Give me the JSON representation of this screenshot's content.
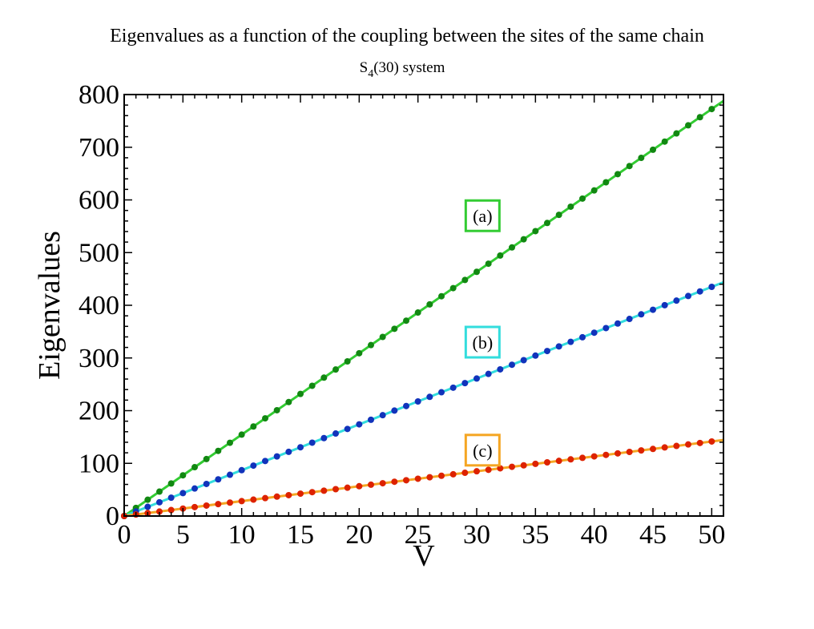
{
  "chart_data": {
    "type": "line",
    "title": "Eigenvalues as a function of the coupling between the sites of the same chain",
    "subtitle": {
      "pre": "S",
      "sub": "4",
      "post": "(30) system"
    },
    "xlabel": "V",
    "ylabel": "Eigenvalues",
    "xlim": [
      0,
      51
    ],
    "ylim": [
      0,
      800
    ],
    "x_ticks": [
      0,
      5,
      10,
      15,
      20,
      25,
      30,
      35,
      40,
      45,
      50
    ],
    "x_tick_labels": [
      "0",
      "5",
      "10",
      "15",
      "20",
      "25",
      "30",
      "35",
      "40",
      "45",
      "50"
    ],
    "y_ticks": [
      0,
      100,
      200,
      300,
      400,
      500,
      600,
      700,
      800
    ],
    "y_tick_labels": [
      "0",
      "100",
      "200",
      "300",
      "400",
      "500",
      "600",
      "700",
      "800"
    ],
    "grid": false,
    "markers_x_start": 0,
    "markers_x_end": 50,
    "markers_x_step": 1,
    "series": [
      {
        "slope": 15.45,
        "intercept": 0,
        "line_color": "#33cc33",
        "marker_color": "#118811",
        "label": "(a)",
        "label_box_color": "#33cc33",
        "label_at": [
          30.5,
          570
        ]
      },
      {
        "slope": 8.7,
        "intercept": 0,
        "line_color": "#33dddd",
        "marker_color": "#1133bb",
        "label": "(b)",
        "label_box_color": "#33dddd",
        "label_at": [
          30.5,
          330
        ]
      },
      {
        "slope": 2.83,
        "intercept": 0,
        "line_color": "#f5a623",
        "marker_color": "#dd2200",
        "label": "(c)",
        "label_box_color": "#f5a623",
        "label_at": [
          30.5,
          125
        ]
      }
    ]
  }
}
